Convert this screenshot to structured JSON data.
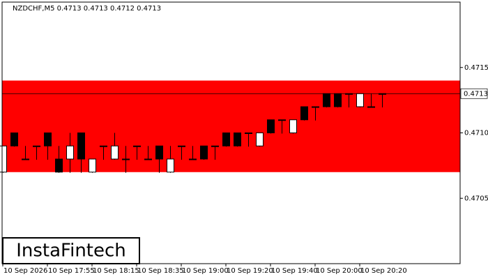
{
  "chart_data": {
    "type": "candlestick",
    "title": "NZDCHF,M5  0.4713 0.4713 0.4712 0.4713",
    "categories": [
      "10 Sep 2026",
      null,
      null,
      null,
      "10 Sep 17:55",
      null,
      null,
      null,
      "10 Sep 18:15",
      null,
      null,
      null,
      "10 Sep 18:35",
      null,
      null,
      null,
      "10 Sep 19:00",
      null,
      null,
      null,
      "10 Sep 19:20",
      null,
      null,
      null,
      "10 Sep 19:40",
      null,
      null,
      null,
      "10 Sep 20:00",
      null,
      null,
      null,
      "10 Sep 20:20",
      null,
      null
    ],
    "open": [
      0.4707,
      0.471,
      0.4708,
      0.4709,
      0.471,
      0.4708,
      0.4708,
      0.471,
      0.4707,
      0.4709,
      0.4708,
      0.4708,
      0.4709,
      0.4708,
      0.4709,
      0.4707,
      0.4709,
      0.4708,
      0.4709,
      0.4709,
      0.471,
      0.471,
      0.471,
      0.4709,
      0.4711,
      0.4711,
      0.471,
      0.4712,
      0.4712,
      0.4713,
      0.4713,
      0.4713,
      0.4712,
      0.4712,
      0.4713
    ],
    "high": [
      0.4709,
      0.471,
      0.4709,
      0.4709,
      0.471,
      0.4709,
      0.471,
      0.471,
      0.4708,
      0.4709,
      0.471,
      0.4709,
      0.4709,
      0.4709,
      0.4709,
      0.4709,
      0.4709,
      0.4709,
      0.4709,
      0.4709,
      0.471,
      0.471,
      0.471,
      0.471,
      0.4711,
      0.4711,
      0.4711,
      0.4712,
      0.4712,
      0.4713,
      0.4713,
      0.4713,
      0.4713,
      0.4713,
      0.4713
    ],
    "low": [
      0.4707,
      0.4709,
      0.4708,
      0.4708,
      0.4708,
      0.4707,
      0.4707,
      0.4707,
      0.4707,
      0.4708,
      0.4708,
      0.4707,
      0.4708,
      0.4708,
      0.4707,
      0.4707,
      0.4708,
      0.4708,
      0.4708,
      0.4708,
      0.4709,
      0.4709,
      0.4709,
      0.4709,
      0.471,
      0.471,
      0.471,
      0.4711,
      0.4711,
      0.4712,
      0.4712,
      0.4712,
      0.4712,
      0.4712,
      0.4712
    ],
    "close": [
      0.4709,
      0.4709,
      0.4708,
      0.4709,
      0.4709,
      0.4707,
      0.4709,
      0.4708,
      0.4708,
      0.4709,
      0.4709,
      0.4708,
      0.4709,
      0.4708,
      0.4708,
      0.4708,
      0.4709,
      0.4708,
      0.4708,
      0.4709,
      0.4709,
      0.4709,
      0.471,
      0.471,
      0.471,
      0.4711,
      0.4711,
      0.4711,
      0.4712,
      0.4712,
      0.4712,
      0.4713,
      0.4713,
      0.4712,
      0.4713
    ],
    "up_color": "#ffffff",
    "down_color": "#000000",
    "ylim": [
      0.47,
      0.472
    ],
    "yticks": [
      0.4705,
      {
        "value": 0.471,
        "label": "0.4710"
      },
      0.4715
    ],
    "band": {
      "low": 0.4707,
      "high": 0.4714,
      "color": "#ff0000"
    },
    "last_price": {
      "value": 0.4713,
      "label": "0.4713"
    }
  },
  "logo": "InstaFintech"
}
